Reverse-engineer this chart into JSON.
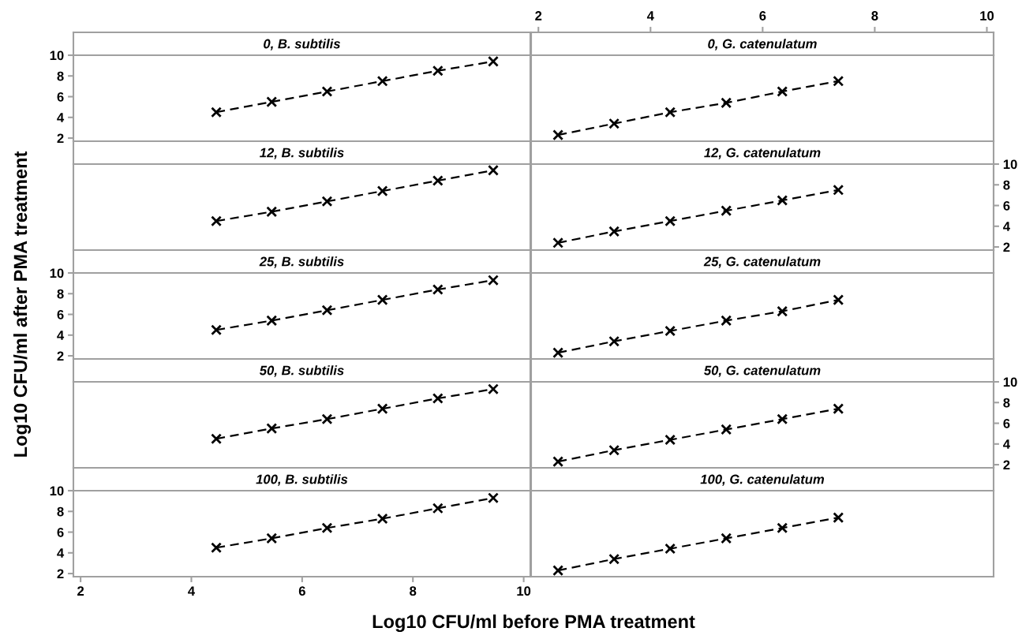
{
  "chart_data": [
    {
      "type": "line",
      "title": "0, B. subtilis",
      "x": [
        4.45,
        5.45,
        6.45,
        7.45,
        8.45,
        9.45
      ],
      "series": [
        {
          "color": "#000000",
          "values": [
            4.5,
            5.5,
            6.5,
            7.5,
            8.5,
            9.4
          ]
        }
      ],
      "xlim": [
        1.87,
        10.12
      ],
      "ylim": [
        1.7,
        10
      ],
      "yticks": [
        2,
        4,
        6,
        8,
        10
      ],
      "tick_labels": "y",
      "marker": "cross",
      "line_style": "dashed",
      "grid": false
    },
    {
      "type": "line",
      "title": "0, G. catenulatum",
      "x": [
        2.35,
        3.35,
        4.35,
        5.35,
        6.35,
        7.35
      ],
      "series": [
        {
          "color": "#000000",
          "values": [
            2.3,
            3.4,
            4.5,
            5.4,
            6.5,
            7.5
          ]
        }
      ],
      "xlim": [
        1.87,
        10.12
      ],
      "ylim": [
        1.7,
        10
      ],
      "x2lim": [
        1.87,
        10.12
      ],
      "x2ticks": [
        2,
        4,
        6,
        8,
        10
      ],
      "tick_labels": "x",
      "marker": "cross",
      "line_style": "dashed",
      "grid": false
    },
    {
      "type": "line",
      "title": "12, B. subtilis",
      "x": [
        4.45,
        5.45,
        6.45,
        7.45,
        8.45,
        9.45
      ],
      "series": [
        {
          "color": "#000000",
          "values": [
            4.5,
            5.4,
            6.4,
            7.4,
            8.4,
            9.4
          ]
        }
      ],
      "xlim": [
        1.87,
        10.12
      ],
      "ylim": [
        1.7,
        10
      ],
      "tick_labels": false,
      "marker": "cross",
      "line_style": "dashed",
      "grid": false
    },
    {
      "type": "line",
      "title": "12, G. catenulatum",
      "x": [
        2.35,
        3.35,
        4.35,
        5.35,
        6.35,
        7.35
      ],
      "series": [
        {
          "color": "#000000",
          "values": [
            2.4,
            3.5,
            4.5,
            5.5,
            6.5,
            7.5
          ],
          "axis": "y2"
        }
      ],
      "xlim": [
        1.87,
        10.12
      ],
      "y2lim": [
        1.7,
        10
      ],
      "y2ticks": [
        2,
        4,
        6,
        8,
        10
      ],
      "tick_labels": "y",
      "marker": "cross",
      "line_style": "dashed",
      "grid": false
    },
    {
      "type": "line",
      "title": "25, B. subtilis",
      "x": [
        4.45,
        5.45,
        6.45,
        7.45,
        8.45,
        9.45
      ],
      "series": [
        {
          "color": "#000000",
          "values": [
            4.5,
            5.4,
            6.4,
            7.4,
            8.4,
            9.3
          ]
        }
      ],
      "xlim": [
        1.87,
        10.12
      ],
      "ylim": [
        1.7,
        10
      ],
      "yticks": [
        2,
        4,
        6,
        8,
        10
      ],
      "tick_labels": "y",
      "marker": "cross",
      "line_style": "dashed",
      "grid": false
    },
    {
      "type": "line",
      "title": "25, G. catenulatum",
      "x": [
        2.35,
        3.35,
        4.35,
        5.35,
        6.35,
        7.35
      ],
      "series": [
        {
          "color": "#000000",
          "values": [
            2.3,
            3.4,
            4.4,
            5.4,
            6.3,
            7.4
          ]
        }
      ],
      "xlim": [
        1.87,
        10.12
      ],
      "ylim": [
        1.7,
        10
      ],
      "tick_labels": false,
      "marker": "cross",
      "line_style": "dashed",
      "grid": false
    },
    {
      "type": "line",
      "title": "50, B. subtilis",
      "x": [
        4.45,
        5.45,
        6.45,
        7.45,
        8.45,
        9.45
      ],
      "series": [
        {
          "color": "#000000",
          "values": [
            4.5,
            5.5,
            6.4,
            7.4,
            8.4,
            9.3
          ]
        }
      ],
      "xlim": [
        1.87,
        10.12
      ],
      "ylim": [
        1.7,
        10
      ],
      "tick_labels": false,
      "marker": "cross",
      "line_style": "dashed",
      "grid": false
    },
    {
      "type": "line",
      "title": "50, G. catenulatum",
      "x": [
        2.35,
        3.35,
        4.35,
        5.35,
        6.35,
        7.35
      ],
      "series": [
        {
          "color": "#000000",
          "values": [
            2.3,
            3.4,
            4.4,
            5.4,
            6.4,
            7.4
          ],
          "axis": "y2"
        }
      ],
      "xlim": [
        1.87,
        10.12
      ],
      "y2lim": [
        1.7,
        10
      ],
      "y2ticks": [
        2,
        4,
        6,
        8,
        10
      ],
      "tick_labels": "y",
      "marker": "cross",
      "line_style": "dashed",
      "grid": false
    },
    {
      "type": "line",
      "title": "100, B. subtilis",
      "x": [
        4.45,
        5.45,
        6.45,
        7.45,
        8.45,
        9.45
      ],
      "series": [
        {
          "color": "#000000",
          "values": [
            4.5,
            5.4,
            6.4,
            7.3,
            8.3,
            9.3
          ]
        }
      ],
      "xlim": [
        1.87,
        10.12
      ],
      "xticks": [
        2,
        4,
        6,
        8,
        10
      ],
      "ylim": [
        1.7,
        10
      ],
      "yticks": [
        2,
        4,
        6,
        8,
        10
      ],
      "xlabel": "Log10 CFU/ml before PMA treatment",
      "ylabel": "Log10 CFU/ml after PMA treatment",
      "marker": "cross",
      "line_style": "dashed",
      "grid": false
    },
    {
      "type": "line",
      "title": "100, G. catenulatum",
      "x": [
        2.35,
        3.35,
        4.35,
        5.35,
        6.35,
        7.35
      ],
      "series": [
        {
          "color": "#000000",
          "values": [
            2.3,
            3.4,
            4.4,
            5.4,
            6.4,
            7.4
          ]
        }
      ],
      "xlim": [
        1.87,
        10.12
      ],
      "ylim": [
        1.7,
        10
      ],
      "tick_labels": false,
      "marker": "cross",
      "line_style": "dashed",
      "grid": false
    }
  ]
}
